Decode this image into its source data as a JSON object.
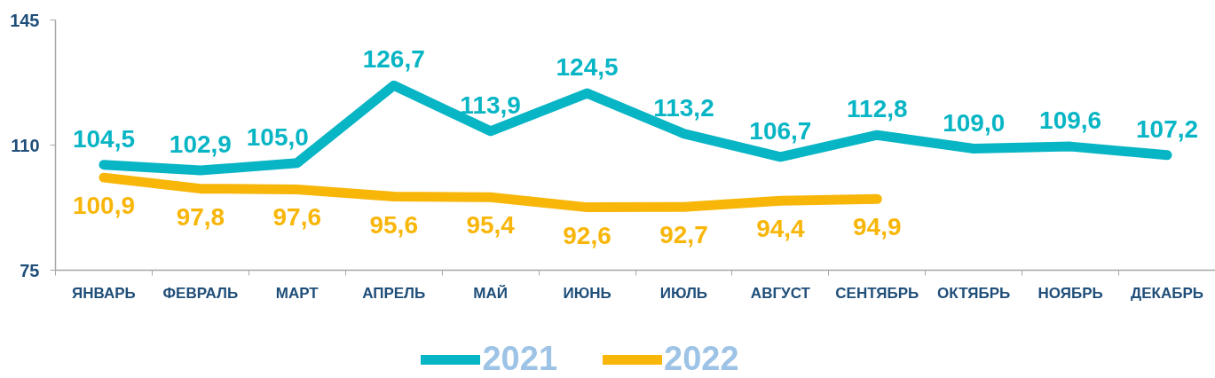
{
  "chart_data": {
    "type": "line",
    "categories": [
      "ЯНВАРЬ",
      "ФЕВРАЛЬ",
      "МАРТ",
      "АПРЕЛЬ",
      "МАЙ",
      "ИЮНЬ",
      "ИЮЛЬ",
      "АВГУСТ",
      "СЕНТЯБРЬ",
      "ОКТЯБРЬ",
      "НОЯБРЬ",
      "ДЕКАБРЬ"
    ],
    "ylim": [
      75,
      145
    ],
    "yticks": [
      75,
      110,
      145
    ],
    "grid": false,
    "legend": "bottom",
    "marker": "none",
    "line_style": "solid",
    "series": [
      {
        "name": "2021",
        "color": "#08b5c5",
        "values": [
          104.5,
          102.9,
          105.0,
          126.7,
          113.9,
          124.5,
          113.2,
          106.7,
          112.8,
          109.0,
          109.6,
          107.2
        ],
        "value_labels": [
          "104,5",
          "102,9",
          "105,0",
          "126,7",
          "113,9",
          "124,5",
          "113,2",
          "106,7",
          "112,8",
          "109,0",
          "109,6",
          "107,2"
        ]
      },
      {
        "name": "2022",
        "color": "#f8b609",
        "values": [
          100.9,
          97.8,
          97.6,
          95.6,
          95.4,
          92.6,
          92.7,
          94.4,
          94.9,
          null,
          null,
          null
        ],
        "value_labels": [
          "100,9",
          "97,8",
          "97,6",
          "95,6",
          "95,4",
          "92,6",
          "92,7",
          "94,4",
          "94,9",
          null,
          null,
          null
        ]
      }
    ]
  }
}
